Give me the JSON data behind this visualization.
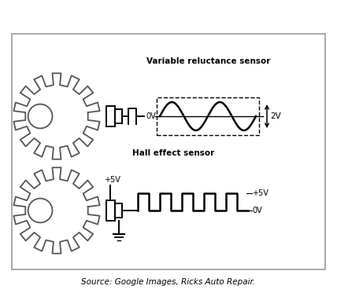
{
  "source_text": "Source: Google Images, Ricks Auto Repair.",
  "bg_color": "#ffffff",
  "border_color": "#999999",
  "gear_color": "#555555",
  "label_vr": "Variable reluctance sensor",
  "label_hall": "Hall effect sensor",
  "label_0v": "0V",
  "label_2v": "2V",
  "label_plus5v_top": "+5V",
  "label_plus5v_right": "+5V",
  "label_0v_right": "0V",
  "fig_width": 4.28,
  "fig_height": 3.73,
  "dpi": 100
}
